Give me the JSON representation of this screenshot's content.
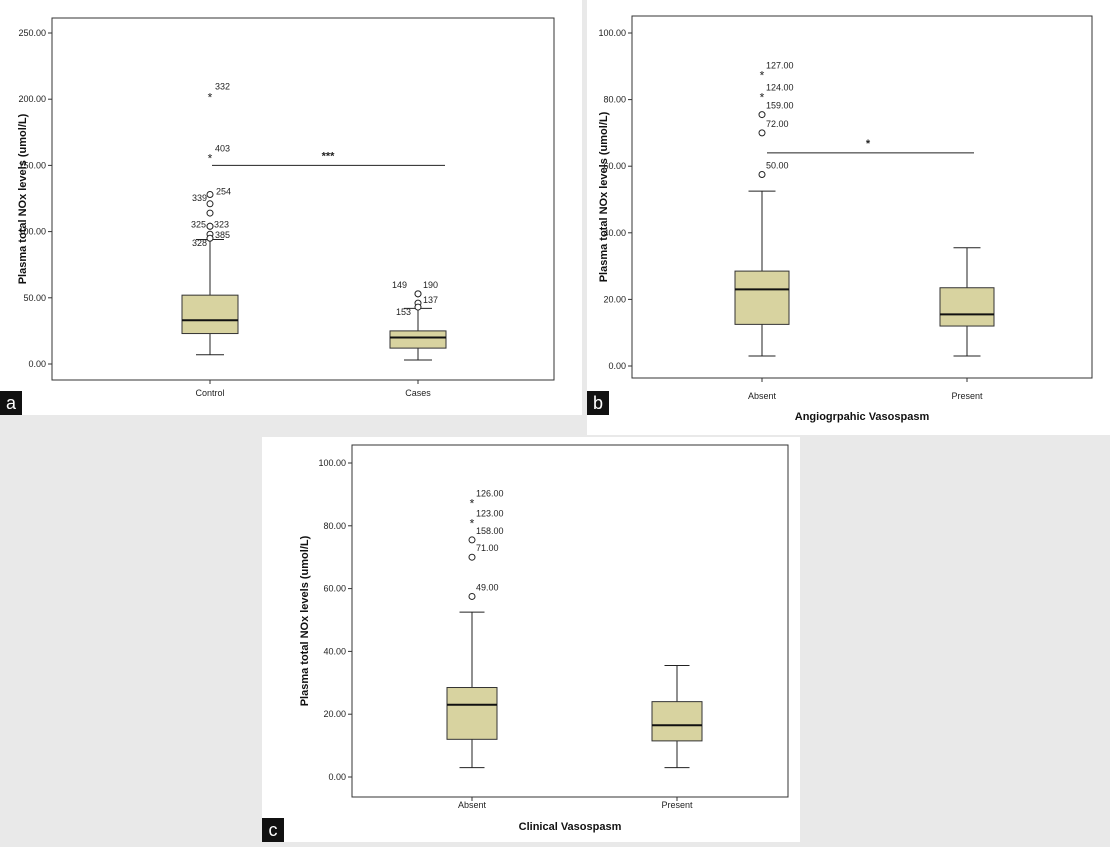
{
  "chart_data": [
    {
      "type": "box",
      "panel_letter": "a",
      "ylabel": "Plasma total NOx levels (umol/L)",
      "xlabel": "",
      "ylim": [
        0,
        250
      ],
      "yticks": [
        "0.00",
        "50.00",
        "100.00",
        "150.00",
        "200.00",
        "250.00"
      ],
      "categories": [
        "Control",
        "Cases"
      ],
      "boxes": [
        {
          "category": "Control",
          "whisker_low": 7,
          "q1": 23,
          "median": 33,
          "q3": 52,
          "whisker_high": 94,
          "outliers": [
            {
              "value": 202,
              "marker": "star",
              "label": "332"
            },
            {
              "value": 156,
              "marker": "star",
              "label": "403"
            },
            {
              "value": 128,
              "marker": "circle",
              "label": "254"
            },
            {
              "value": 121,
              "marker": "circle",
              "label": "339"
            },
            {
              "value": 114,
              "marker": "circle",
              "label": ""
            },
            {
              "value": 104,
              "marker": "circle",
              "label": "325"
            },
            {
              "value": 104,
              "marker": "circle",
              "label": "323"
            },
            {
              "value": 98,
              "marker": "circle",
              "label": "385"
            },
            {
              "value": 95,
              "marker": "circle",
              "label": "328"
            }
          ]
        },
        {
          "category": "Cases",
          "whisker_low": 3,
          "q1": 12,
          "median": 20,
          "q3": 25,
          "whisker_high": 42,
          "outliers": [
            {
              "value": 53,
              "marker": "circle",
              "label": "149"
            },
            {
              "value": 53,
              "marker": "circle",
              "label": "190"
            },
            {
              "value": 46,
              "marker": "circle",
              "label": "137"
            },
            {
              "value": 43,
              "marker": "circle",
              "label": "153"
            }
          ]
        }
      ],
      "significance": {
        "value": 150,
        "label": "***"
      }
    },
    {
      "type": "box",
      "panel_letter": "b",
      "ylabel": "Plasma total NOx levels (umol/L)",
      "xlabel": "Angiogrpahic Vasospasm",
      "ylim": [
        0,
        100
      ],
      "yticks": [
        "0.00",
        "20.00",
        "40.00",
        "60.00",
        "80.00",
        "100.00"
      ],
      "categories": [
        "Absent",
        "Present"
      ],
      "boxes": [
        {
          "category": "Absent",
          "whisker_low": 3,
          "q1": 12.5,
          "median": 23,
          "q3": 28.5,
          "whisker_high": 52.5,
          "outliers": [
            {
              "value": 87.5,
              "marker": "star",
              "label": "127.00"
            },
            {
              "value": 81,
              "marker": "star",
              "label": "124.00"
            },
            {
              "value": 75.5,
              "marker": "circle",
              "label": "159.00"
            },
            {
              "value": 70,
              "marker": "circle",
              "label": "72.00"
            },
            {
              "value": 57.5,
              "marker": "circle",
              "label": "50.00"
            }
          ]
        },
        {
          "category": "Present",
          "whisker_low": 3,
          "q1": 12,
          "median": 15.5,
          "q3": 23.5,
          "whisker_high": 35.5,
          "outliers": []
        }
      ],
      "significance": {
        "value": 64,
        "label": "*"
      }
    },
    {
      "type": "box",
      "panel_letter": "c",
      "ylabel": "Plasma total NOx levels (umol/L)",
      "xlabel": "Clinical Vasospasm",
      "ylim": [
        0,
        100
      ],
      "yticks": [
        "0.00",
        "20.00",
        "40.00",
        "60.00",
        "80.00",
        "100.00"
      ],
      "categories": [
        "Absent",
        "Present"
      ],
      "boxes": [
        {
          "category": "Absent",
          "whisker_low": 3,
          "q1": 12,
          "median": 23,
          "q3": 28.5,
          "whisker_high": 52.5,
          "outliers": [
            {
              "value": 87.5,
              "marker": "star",
              "label": "126.00"
            },
            {
              "value": 81,
              "marker": "star",
              "label": "123.00"
            },
            {
              "value": 75.5,
              "marker": "circle",
              "label": "158.00"
            },
            {
              "value": 70,
              "marker": "circle",
              "label": "71.00"
            },
            {
              "value": 57.5,
              "marker": "circle",
              "label": "49.00"
            }
          ]
        },
        {
          "category": "Present",
          "whisker_low": 3,
          "q1": 11.5,
          "median": 16.5,
          "q3": 24,
          "whisker_high": 35.5,
          "outliers": []
        }
      ]
    }
  ]
}
